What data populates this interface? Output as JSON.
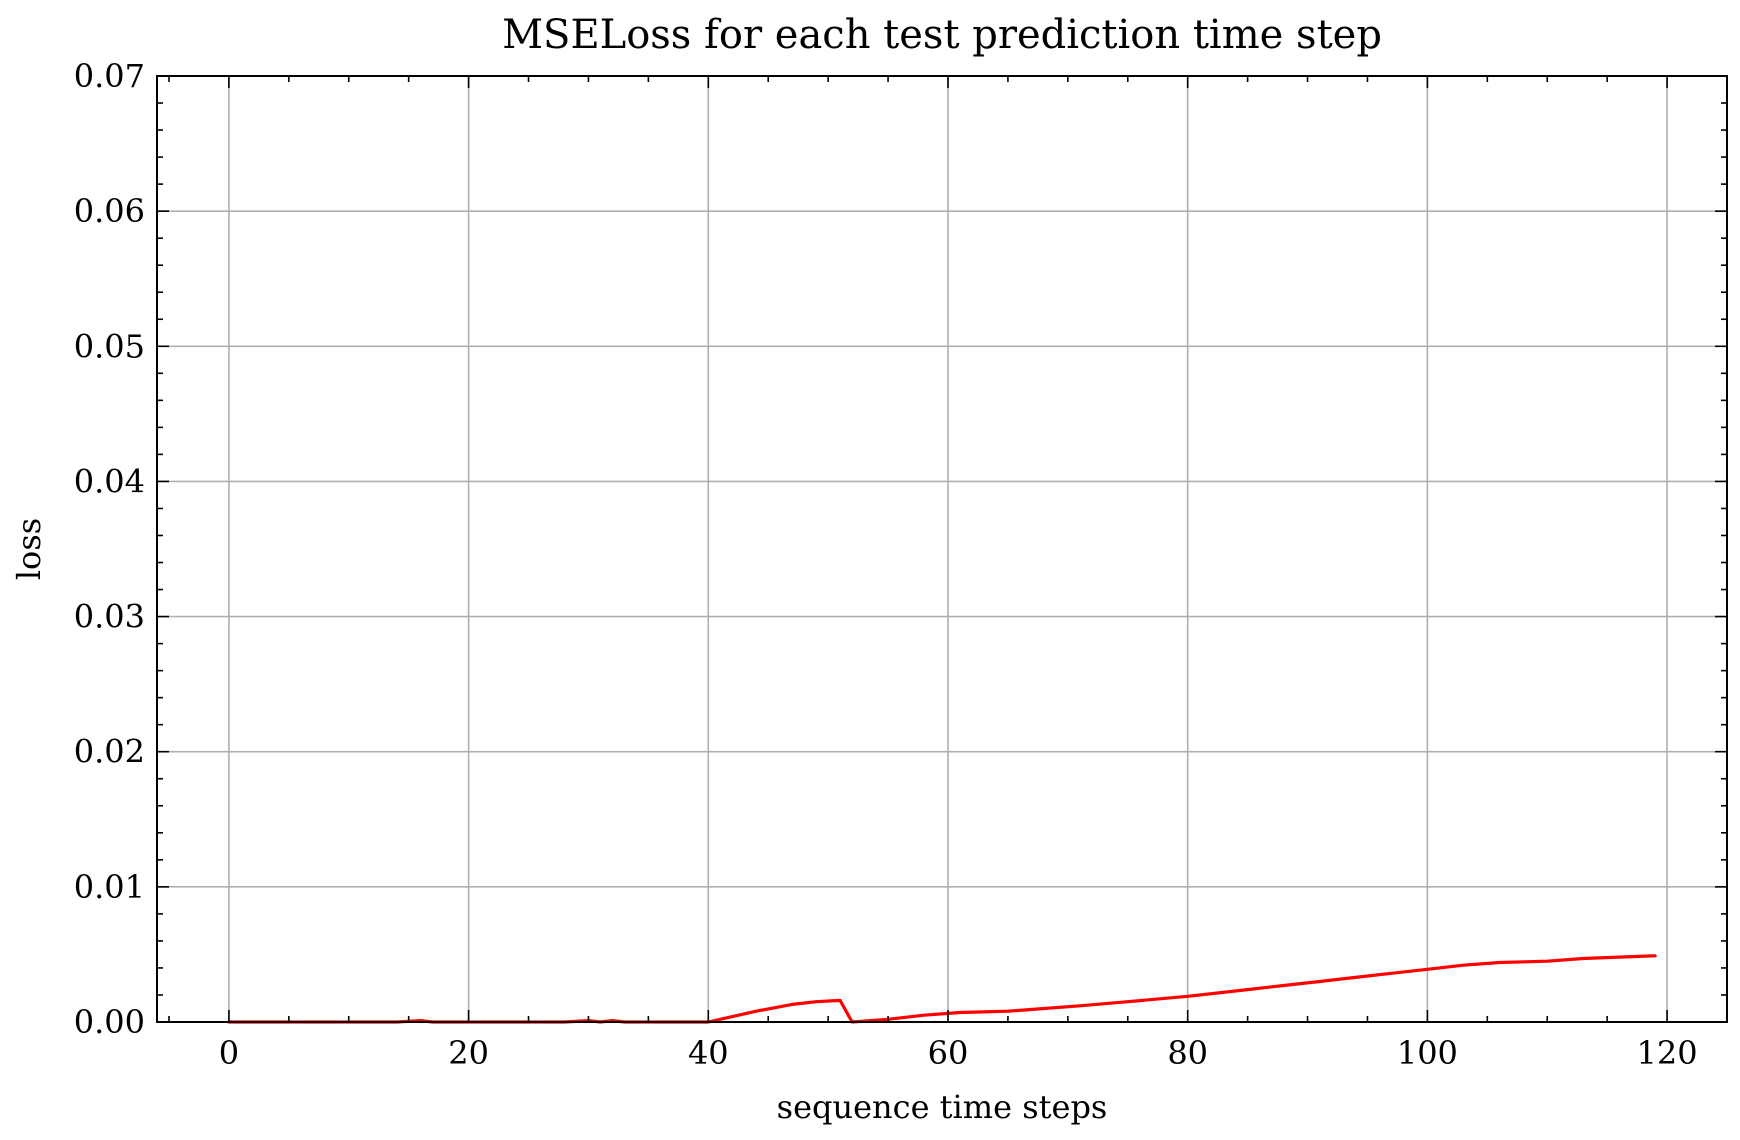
{
  "chart_data": {
    "type": "line",
    "title": "MSELoss for each test prediction time step",
    "xlabel": "sequence time steps",
    "ylabel": "loss",
    "xlim": [
      -6,
      125
    ],
    "ylim": [
      0,
      0.07
    ],
    "x_ticks": [
      0,
      20,
      40,
      60,
      80,
      100,
      120
    ],
    "x_tick_labels": [
      "0",
      "20",
      "40",
      "60",
      "80",
      "100",
      "120"
    ],
    "y_ticks": [
      0,
      0.01,
      0.02,
      0.03,
      0.04,
      0.05,
      0.06,
      0.07
    ],
    "y_tick_labels": [
      "0.00",
      "0.01",
      "0.02",
      "0.03",
      "0.04",
      "0.05",
      "0.06",
      "0.07"
    ],
    "grid": true,
    "legend": "none",
    "series": [
      {
        "color": "#ff0000",
        "x": [
          0,
          5,
          10,
          14,
          16,
          17,
          20,
          24,
          26,
          28,
          30,
          31,
          32,
          33,
          34,
          35,
          37,
          40,
          44,
          47,
          49,
          51,
          52,
          55,
          58,
          61,
          65,
          68,
          71,
          75,
          80,
          85,
          88,
          91,
          94,
          97,
          100,
          103,
          106,
          110,
          113,
          116,
          119
        ],
        "y": [
          0,
          0,
          0,
          0,
          0.0001,
          0,
          0,
          0,
          0,
          0,
          0.0001,
          0,
          0.0001,
          0,
          0,
          0,
          0,
          0,
          0.0008,
          0.0013,
          0.0015,
          0.0016,
          0,
          0.0002,
          0.0005,
          0.0007,
          0.0008,
          0.001,
          0.0012,
          0.0015,
          0.0019,
          0.0024,
          0.0027,
          0.003,
          0.0033,
          0.0036,
          0.0039,
          0.0042,
          0.0044,
          0.0045,
          0.0047,
          0.0048,
          0.0049
        ]
      }
    ]
  }
}
